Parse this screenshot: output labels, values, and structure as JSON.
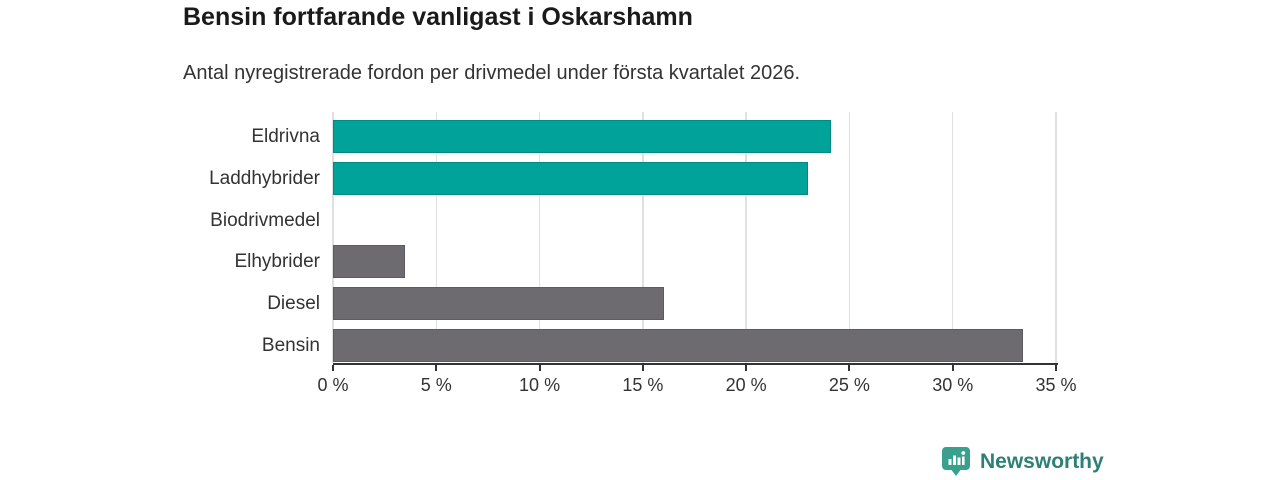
{
  "header": {
    "title": "Bensin fortfarande vanligast i Oskarshamn",
    "subtitle": "Antal nyregistrerade fordon per drivmedel under första kvartalet 2026."
  },
  "chart_data": {
    "type": "bar",
    "orientation": "horizontal",
    "title": "Bensin fortfarande vanligast i Oskarshamn",
    "subtitle": "Antal nyregistrerade fordon per drivmedel under första kvartalet 2026.",
    "categories": [
      "Eldrivna",
      "Laddhybrider",
      "Biodrivmedel",
      "Elhybrider",
      "Diesel",
      "Bensin"
    ],
    "values": [
      24.1,
      23.0,
      0,
      3.5,
      16.0,
      33.4
    ],
    "unit": "%",
    "xlim": [
      0,
      35
    ],
    "x_ticks": [
      0,
      5,
      10,
      15,
      20,
      25,
      30,
      35
    ],
    "x_tick_labels": [
      "0 %",
      "5 %",
      "10 %",
      "15 %",
      "20 %",
      "25 %",
      "30 %",
      "35 %"
    ],
    "bar_colors": [
      "#00a39a",
      "#00a39a",
      "#6e6b70",
      "#6e6b70",
      "#6e6b70",
      "#6e6b70"
    ],
    "grid": true,
    "legend": false
  },
  "colors": {
    "highlight_teal": "#00a39a",
    "neutral_gray": "#6e6b70",
    "gridline": "#e0e0e0",
    "axis": "#333333",
    "logo_icon": "#38a08d",
    "logo_text": "#2e8076"
  },
  "footer": {
    "brand": "Newsworthy"
  }
}
